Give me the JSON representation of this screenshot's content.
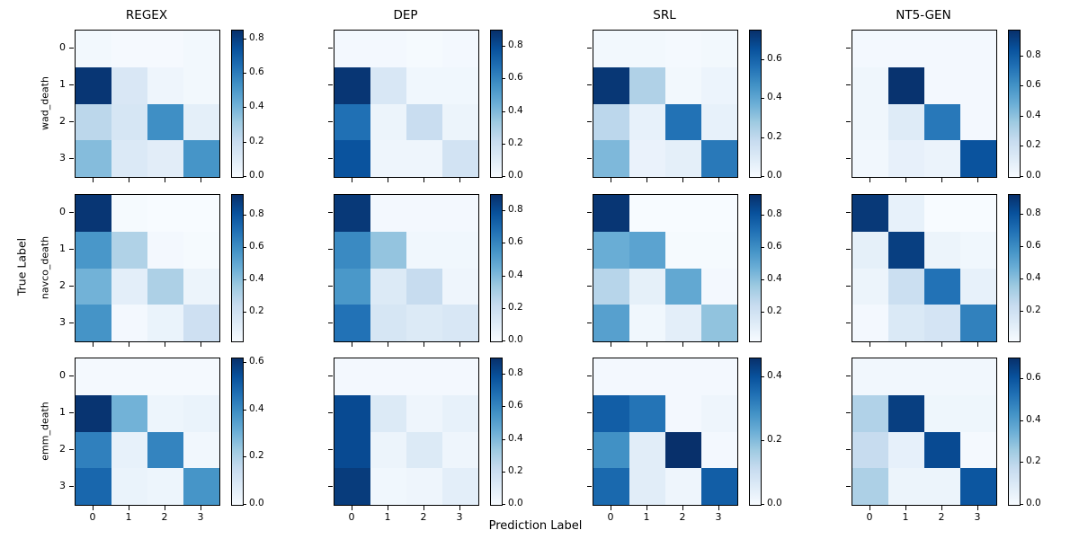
{
  "figure": {
    "xlabel": "Prediction Label",
    "ylabel": "True Label",
    "col_titles": [
      "REGEX",
      "DEP",
      "SRL",
      "NT5-GEN"
    ],
    "row_labels": [
      "wad_death",
      "navco_death",
      "emm_death"
    ],
    "x_tick_labels": [
      "0",
      "1",
      "2",
      "3"
    ],
    "y_tick_labels": [
      "0",
      "1",
      "2",
      "3"
    ],
    "colormap": "Blues",
    "color_min": "#f7fbff",
    "color_max": "#08306b",
    "background": "#ffffff"
  },
  "chart_data": [
    {
      "type": "heatmap",
      "col_title": "REGEX",
      "row_label": "wad_death",
      "row": 0,
      "col": 0,
      "vmin": 0.0,
      "vmax": 0.85,
      "colorbar_ticks": [
        0.8,
        0.6,
        0.4,
        0.2,
        0.0
      ],
      "values": [
        [
          0.02,
          0.01,
          0.01,
          0.02
        ],
        [
          0.83,
          0.13,
          0.04,
          0.02
        ],
        [
          0.24,
          0.14,
          0.54,
          0.08
        ],
        [
          0.37,
          0.12,
          0.09,
          0.52
        ]
      ]
    },
    {
      "type": "heatmap",
      "col_title": "DEP",
      "row_label": "wad_death",
      "row": 0,
      "col": 1,
      "vmin": 0.0,
      "vmax": 0.9,
      "colorbar_ticks": [
        0.8,
        0.6,
        0.4,
        0.2,
        0.0
      ],
      "values": [
        [
          0.02,
          0.02,
          0.01,
          0.02
        ],
        [
          0.88,
          0.14,
          0.03,
          0.03
        ],
        [
          0.68,
          0.05,
          0.21,
          0.05
        ],
        [
          0.78,
          0.04,
          0.04,
          0.17
        ]
      ]
    },
    {
      "type": "heatmap",
      "col_title": "SRL",
      "row_label": "wad_death",
      "row": 0,
      "col": 2,
      "vmin": 0.0,
      "vmax": 0.75,
      "colorbar_ticks": [
        0.6,
        0.4,
        0.2,
        0.0
      ],
      "values": [
        [
          0.02,
          0.02,
          0.01,
          0.02
        ],
        [
          0.73,
          0.24,
          0.02,
          0.04
        ],
        [
          0.21,
          0.06,
          0.56,
          0.06
        ],
        [
          0.34,
          0.05,
          0.07,
          0.54
        ]
      ]
    },
    {
      "type": "heatmap",
      "col_title": "NT5-GEN",
      "row_label": "wad_death",
      "row": 0,
      "col": 3,
      "vmin": 0.0,
      "vmax": 0.97,
      "colorbar_ticks": [
        0.8,
        0.6,
        0.4,
        0.2,
        0.0
      ],
      "values": [
        [
          0.02,
          0.02,
          0.02,
          0.02
        ],
        [
          0.04,
          0.96,
          0.02,
          0.02
        ],
        [
          0.04,
          0.12,
          0.7,
          0.02
        ],
        [
          0.03,
          0.08,
          0.06,
          0.84
        ]
      ]
    },
    {
      "type": "heatmap",
      "col_title": "REGEX",
      "row_label": "navco_death",
      "row": 1,
      "col": 0,
      "vmin": 0.02,
      "vmax": 0.93,
      "colorbar_ticks": [
        0.8,
        0.6,
        0.4,
        0.2
      ],
      "values": [
        [
          0.91,
          0.03,
          0.02,
          0.02
        ],
        [
          0.57,
          0.31,
          0.04,
          0.03
        ],
        [
          0.46,
          0.11,
          0.32,
          0.07
        ],
        [
          0.58,
          0.04,
          0.08,
          0.21
        ]
      ]
    },
    {
      "type": "heatmap",
      "col_title": "DEP",
      "row_label": "navco_death",
      "row": 1,
      "col": 1,
      "vmin": 0.0,
      "vmax": 0.9,
      "colorbar_ticks": [
        0.8,
        0.6,
        0.4,
        0.2,
        0.0
      ],
      "values": [
        [
          0.87,
          0.02,
          0.02,
          0.02
        ],
        [
          0.59,
          0.36,
          0.03,
          0.03
        ],
        [
          0.54,
          0.12,
          0.22,
          0.04
        ],
        [
          0.67,
          0.15,
          0.12,
          0.14
        ]
      ]
    },
    {
      "type": "heatmap",
      "col_title": "SRL",
      "row_label": "navco_death",
      "row": 1,
      "col": 2,
      "vmin": 0.02,
      "vmax": 0.93,
      "colorbar_ticks": [
        0.8,
        0.6,
        0.4,
        0.2
      ],
      "values": [
        [
          0.91,
          0.02,
          0.02,
          0.02
        ],
        [
          0.48,
          0.52,
          0.03,
          0.03
        ],
        [
          0.29,
          0.1,
          0.5,
          0.04
        ],
        [
          0.53,
          0.05,
          0.11,
          0.39
        ]
      ]
    },
    {
      "type": "heatmap",
      "col_title": "NT5-GEN",
      "row_label": "navco_death",
      "row": 1,
      "col": 3,
      "vmin": 0.02,
      "vmax": 0.92,
      "colorbar_ticks": [
        0.8,
        0.6,
        0.4,
        0.2
      ],
      "values": [
        [
          0.89,
          0.09,
          0.02,
          0.02
        ],
        [
          0.1,
          0.87,
          0.07,
          0.05
        ],
        [
          0.07,
          0.22,
          0.69,
          0.09
        ],
        [
          0.04,
          0.15,
          0.18,
          0.64
        ]
      ]
    },
    {
      "type": "heatmap",
      "col_title": "REGEX",
      "row_label": "emm_death",
      "row": 2,
      "col": 0,
      "vmin": 0.0,
      "vmax": 0.62,
      "colorbar_ticks": [
        0.6,
        0.4,
        0.2,
        0.0
      ],
      "values": [
        [
          0.01,
          0.01,
          0.01,
          0.01
        ],
        [
          0.61,
          0.3,
          0.03,
          0.04
        ],
        [
          0.43,
          0.05,
          0.42,
          0.02
        ],
        [
          0.49,
          0.04,
          0.03,
          0.38
        ]
      ]
    },
    {
      "type": "heatmap",
      "col_title": "DEP",
      "row_label": "emm_death",
      "row": 2,
      "col": 1,
      "vmin": 0.0,
      "vmax": 0.9,
      "colorbar_ticks": [
        0.8,
        0.6,
        0.4,
        0.2,
        0.0
      ],
      "values": [
        [
          0.02,
          0.02,
          0.02,
          0.02
        ],
        [
          0.81,
          0.12,
          0.04,
          0.07
        ],
        [
          0.81,
          0.05,
          0.12,
          0.04
        ],
        [
          0.86,
          0.03,
          0.04,
          0.09
        ]
      ]
    },
    {
      "type": "heatmap",
      "col_title": "SRL",
      "row_label": "emm_death",
      "row": 2,
      "col": 2,
      "vmin": 0.0,
      "vmax": 0.46,
      "colorbar_ticks": [
        0.4,
        0.2,
        0.0
      ],
      "values": [
        [
          0.01,
          0.01,
          0.01,
          0.01
        ],
        [
          0.38,
          0.34,
          0.01,
          0.02
        ],
        [
          0.29,
          0.05,
          0.46,
          0.01
        ],
        [
          0.36,
          0.05,
          0.02,
          0.38
        ]
      ]
    },
    {
      "type": "heatmap",
      "col_title": "NT5-GEN",
      "row_label": "emm_death",
      "row": 2,
      "col": 3,
      "vmin": 0.0,
      "vmax": 0.7,
      "colorbar_ticks": [
        0.6,
        0.4,
        0.2,
        0.0
      ],
      "values": [
        [
          0.02,
          0.02,
          0.02,
          0.02
        ],
        [
          0.22,
          0.66,
          0.03,
          0.03
        ],
        [
          0.17,
          0.06,
          0.63,
          0.01
        ],
        [
          0.23,
          0.04,
          0.04,
          0.6
        ]
      ]
    }
  ]
}
